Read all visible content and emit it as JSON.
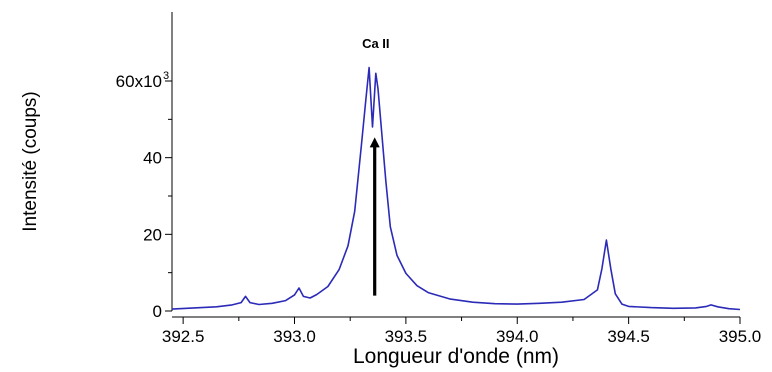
{
  "chart_data": {
    "type": "line",
    "title": "",
    "xlabel": "Longueur d'onde (nm)",
    "ylabel": "Intensité (coups)",
    "xlim": [
      392.45,
      395.0
    ],
    "ylim": [
      0,
      78000
    ],
    "grid": false,
    "legend": "none",
    "x_ticks": [
      392.5,
      393.0,
      393.5,
      394.0,
      394.5,
      395.0
    ],
    "x_tick_labels": [
      "392.5",
      "393.0",
      "393.5",
      "394.0",
      "394.5",
      "395.0"
    ],
    "y_ticks": [
      0,
      20000,
      40000,
      60000
    ],
    "y_tick_labels": [
      "0",
      "20",
      "40",
      "60x10"
    ],
    "y_multiplier_exponent": "3",
    "annotation": "Ca II",
    "series": [
      {
        "color": "#2b2bb8",
        "x": [
          392.45,
          392.55,
          392.65,
          392.72,
          392.76,
          392.78,
          392.8,
          392.84,
          392.9,
          392.96,
          393.0,
          393.02,
          393.04,
          393.07,
          393.1,
          393.15,
          393.2,
          393.24,
          393.27,
          393.3,
          393.32,
          393.335,
          393.35,
          393.365,
          393.375,
          393.39,
          393.41,
          393.43,
          393.46,
          393.5,
          393.55,
          393.6,
          393.7,
          393.8,
          393.9,
          394.0,
          394.1,
          394.2,
          394.3,
          394.36,
          394.38,
          394.4,
          394.42,
          394.44,
          394.47,
          394.5,
          394.6,
          394.7,
          394.8,
          394.85,
          394.87,
          394.9,
          394.95,
          395.0
        ],
        "y": [
          500,
          800,
          1100,
          1600,
          2200,
          3800,
          2200,
          1700,
          2000,
          2700,
          4200,
          6000,
          3800,
          3400,
          4300,
          6400,
          10800,
          17000,
          26000,
          43000,
          55000,
          63500,
          48000,
          62000,
          58000,
          47500,
          34000,
          22000,
          14500,
          9800,
          6600,
          4800,
          3100,
          2300,
          1900,
          1800,
          2000,
          2300,
          3000,
          5500,
          11000,
          18500,
          11000,
          4500,
          1800,
          1200,
          900,
          700,
          800,
          1200,
          1600,
          1100,
          600,
          400
        ]
      }
    ],
    "arrow": {
      "x": 393.36,
      "y_from": 4000,
      "y_to": 44000
    }
  }
}
